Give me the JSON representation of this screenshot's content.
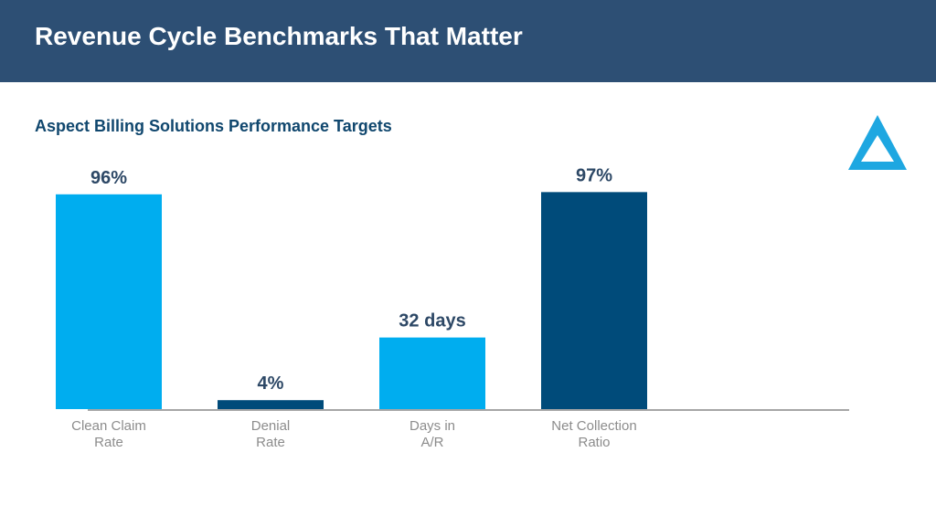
{
  "header": {
    "title": "Revenue Cycle Benchmarks That Matter"
  },
  "subtitle": "Aspect Billing Solutions Performance Targets",
  "colors": {
    "header_bg": "#2d4f74",
    "title_text": "#ffffff",
    "subtitle_text": "#10476e",
    "light_blue": "#00adef",
    "dark_blue": "#004b7a",
    "value_label": "#2d4866",
    "tick_label": "#8c8c8c",
    "axis_line": "#a6a6a6",
    "logo": "#1ea7e1"
  },
  "logo": {
    "icon": "triangle-logo-icon"
  },
  "chart_data": {
    "type": "bar",
    "categories": [
      [
        "Clean Claim",
        "Rate"
      ],
      [
        "Denial",
        "Rate"
      ],
      [
        "Days in",
        "A/R"
      ],
      [
        "Net Collection",
        "Ratio"
      ]
    ],
    "bars": [
      {
        "label": "96%",
        "height_ratio": 0.96,
        "color": "light_blue"
      },
      {
        "label": "4%",
        "height_ratio": 0.04,
        "color": "dark_blue"
      },
      {
        "label": "32 days",
        "height_ratio": 0.32,
        "color": "light_blue"
      },
      {
        "label": "97%",
        "height_ratio": 0.97,
        "color": "dark_blue"
      }
    ],
    "grid": false,
    "legend": "none"
  }
}
